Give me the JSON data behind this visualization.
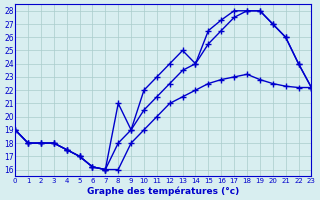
{
  "line1_x": [
    0,
    1,
    2,
    3,
    4,
    5,
    6,
    7,
    8,
    9,
    10,
    11,
    12,
    13,
    14,
    15,
    16,
    17,
    18,
    19,
    20,
    21,
    22,
    23
  ],
  "line1_y": [
    19.0,
    18.0,
    18.0,
    18.0,
    17.5,
    17.0,
    16.2,
    16.0,
    21.0,
    19.0,
    22.0,
    23.0,
    24.0,
    25.0,
    24.0,
    26.5,
    27.3,
    28.0,
    28.0,
    28.0,
    27.0,
    26.0,
    24.0,
    22.2
  ],
  "line2_x": [
    0,
    1,
    2,
    3,
    4,
    5,
    6,
    7,
    8,
    9,
    10,
    11,
    12,
    13,
    14,
    15,
    16,
    17,
    18,
    19,
    20,
    21,
    22,
    23
  ],
  "line2_y": [
    19.0,
    18.0,
    18.0,
    18.0,
    17.5,
    17.0,
    16.2,
    16.0,
    18.0,
    19.0,
    20.5,
    21.5,
    22.5,
    23.5,
    24.0,
    25.5,
    26.5,
    27.5,
    28.0,
    28.0,
    27.0,
    26.0,
    24.0,
    22.2
  ],
  "line3_x": [
    0,
    1,
    2,
    3,
    4,
    5,
    6,
    7,
    8,
    9,
    10,
    11,
    12,
    13,
    14,
    15,
    16,
    17,
    18,
    19,
    20,
    21,
    22,
    23
  ],
  "line3_y": [
    19.0,
    18.0,
    18.0,
    18.0,
    17.5,
    17.0,
    16.2,
    16.0,
    16.0,
    18.0,
    19.0,
    20.0,
    21.0,
    21.5,
    22.0,
    22.5,
    22.8,
    23.0,
    23.2,
    22.8,
    22.5,
    22.3,
    22.2,
    22.2
  ],
  "bg_color": "#d8eef0",
  "line_color": "#0000cc",
  "grid_color": "#aacccc",
  "xlabel": "Graphe des températures (°c)",
  "xlim": [
    0,
    23
  ],
  "ylim": [
    16,
    28
  ],
  "yticks": [
    16,
    17,
    18,
    19,
    20,
    21,
    22,
    23,
    24,
    25,
    26,
    27,
    28
  ],
  "xticks": [
    0,
    1,
    2,
    3,
    4,
    5,
    6,
    7,
    8,
    9,
    10,
    11,
    12,
    13,
    14,
    15,
    16,
    17,
    18,
    19,
    20,
    21,
    22,
    23
  ],
  "xtick_labels": [
    "0",
    "1",
    "2",
    "3",
    "4",
    "5",
    "6",
    "7",
    "8",
    "9",
    "10",
    "11",
    "12",
    "13",
    "14",
    "15",
    "16",
    "17",
    "18",
    "19",
    "20",
    "21",
    "22",
    "23"
  ],
  "marker": "+",
  "markersize": 5,
  "linewidth": 1.0
}
